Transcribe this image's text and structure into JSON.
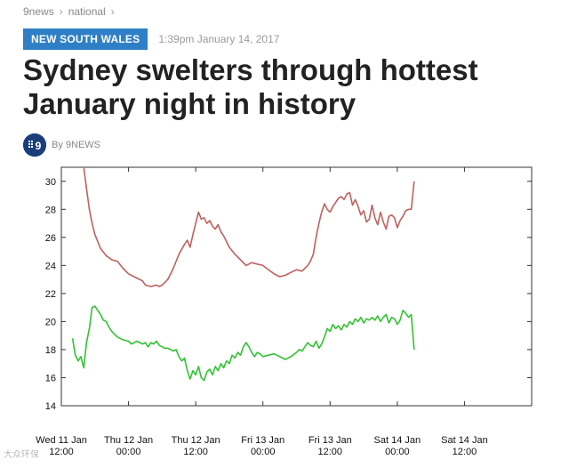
{
  "breadcrumb": {
    "items": [
      "9news",
      "national"
    ],
    "separator": "›"
  },
  "article": {
    "category": "NEW SOUTH WALES",
    "timestamp": "1:39pm January 14, 2017",
    "title": "Sydney swelters through hottest January night in history",
    "byline": "By 9NEWS",
    "author_logo_text": "9"
  },
  "colors": {
    "badge": "#2f7fc6",
    "red_series": "#c06060",
    "green_series": "#33c233",
    "avatar": "#1b3e7a"
  },
  "chart_data": {
    "type": "line",
    "xlim": [
      0,
      84
    ],
    "ylim": [
      14,
      31
    ],
    "y_ticks": [
      14,
      16,
      18,
      20,
      22,
      24,
      26,
      28,
      30
    ],
    "x_ticks": [
      {
        "x": 0,
        "label1": "Wed 11 Jan",
        "label2": "12:00"
      },
      {
        "x": 12,
        "label1": "Thu 12 Jan",
        "label2": "00:00"
      },
      {
        "x": 24,
        "label1": "Thu 12 Jan",
        "label2": "12:00"
      },
      {
        "x": 36,
        "label1": "Fri 13 Jan",
        "label2": "00:00"
      },
      {
        "x": 48,
        "label1": "Fri 13 Jan",
        "label2": "12:00"
      },
      {
        "x": 60,
        "label1": "Sat 14 Jan",
        "label2": "00:00"
      },
      {
        "x": 72,
        "label1": "Sat 14 Jan",
        "label2": "12:00"
      }
    ],
    "grid": false,
    "series": [
      {
        "color": "#c06060",
        "points": [
          [
            4,
            31
          ],
          [
            4.5,
            29.5
          ],
          [
            5,
            28
          ],
          [
            5.5,
            27
          ],
          [
            6,
            26.2
          ],
          [
            7,
            25.2
          ],
          [
            8,
            24.7
          ],
          [
            9,
            24.4
          ],
          [
            10,
            24.3
          ],
          [
            11,
            23.8
          ],
          [
            12,
            23.4
          ],
          [
            13,
            23.2
          ],
          [
            14,
            23
          ],
          [
            14.5,
            22.9
          ],
          [
            15,
            22.6
          ],
          [
            16,
            22.5
          ],
          [
            17,
            22.6
          ],
          [
            17.5,
            22.5
          ],
          [
            18,
            22.6
          ],
          [
            19,
            23
          ],
          [
            20,
            23.8
          ],
          [
            21,
            24.8
          ],
          [
            22,
            25.5
          ],
          [
            22.5,
            25.8
          ],
          [
            23,
            25.3
          ],
          [
            23.5,
            26.2
          ],
          [
            24,
            27
          ],
          [
            24.5,
            27.8
          ],
          [
            25,
            27.3
          ],
          [
            25.5,
            27.4
          ],
          [
            26,
            27
          ],
          [
            26.5,
            27.2
          ],
          [
            27,
            26.8
          ],
          [
            27.5,
            26.6
          ],
          [
            28,
            26.9
          ],
          [
            28.5,
            26.4
          ],
          [
            29,
            26.1
          ],
          [
            30,
            25.3
          ],
          [
            31,
            24.8
          ],
          [
            32,
            24.4
          ],
          [
            33,
            24
          ],
          [
            34,
            24.2
          ],
          [
            35,
            24.1
          ],
          [
            36,
            24
          ],
          [
            37,
            23.7
          ],
          [
            38,
            23.4
          ],
          [
            39,
            23.2
          ],
          [
            40,
            23.3
          ],
          [
            41,
            23.5
          ],
          [
            42,
            23.7
          ],
          [
            43,
            23.6
          ],
          [
            44,
            24
          ],
          [
            44.5,
            24.3
          ],
          [
            45,
            24.8
          ],
          [
            45.5,
            26
          ],
          [
            46,
            27
          ],
          [
            46.5,
            27.8
          ],
          [
            47,
            28.4
          ],
          [
            47.5,
            28
          ],
          [
            48,
            27.8
          ],
          [
            48.5,
            28.2
          ],
          [
            49,
            28.5
          ],
          [
            49.5,
            28.8
          ],
          [
            50,
            28.9
          ],
          [
            50.5,
            28.7
          ],
          [
            51,
            29.1
          ],
          [
            51.5,
            29.2
          ],
          [
            52,
            28.3
          ],
          [
            52.5,
            28.7
          ],
          [
            53,
            28.2
          ],
          [
            53.5,
            27.6
          ],
          [
            54,
            27.9
          ],
          [
            54.5,
            27.1
          ],
          [
            55,
            27.3
          ],
          [
            55.5,
            28.3
          ],
          [
            56,
            27.4
          ],
          [
            56.5,
            26.9
          ],
          [
            57,
            27.8
          ],
          [
            57.5,
            27.1
          ],
          [
            58,
            26.6
          ],
          [
            58.5,
            27.5
          ],
          [
            59,
            27.6
          ],
          [
            59.5,
            27.4
          ],
          [
            60,
            26.7
          ],
          [
            60.5,
            27.2
          ],
          [
            61,
            27.5
          ],
          [
            61.5,
            27.9
          ],
          [
            62,
            28
          ],
          [
            62.5,
            28
          ],
          [
            63,
            30
          ]
        ]
      },
      {
        "color": "#33c233",
        "points": [
          [
            2,
            18.8
          ],
          [
            2.5,
            17.6
          ],
          [
            3,
            17.2
          ],
          [
            3.5,
            17.5
          ],
          [
            4,
            16.7
          ],
          [
            4.5,
            18.5
          ],
          [
            5,
            19.5
          ],
          [
            5.5,
            21
          ],
          [
            6,
            21.1
          ],
          [
            6.5,
            20.8
          ],
          [
            7,
            20.5
          ],
          [
            7.5,
            20.1
          ],
          [
            8,
            20
          ],
          [
            8.5,
            19.6
          ],
          [
            9,
            19.3
          ],
          [
            9.5,
            19.1
          ],
          [
            10,
            18.9
          ],
          [
            10.5,
            18.8
          ],
          [
            11,
            18.7
          ],
          [
            12,
            18.6
          ],
          [
            12.5,
            18.4
          ],
          [
            13,
            18.5
          ],
          [
            13.5,
            18.6
          ],
          [
            14,
            18.5
          ],
          [
            14.5,
            18.4
          ],
          [
            15,
            18.5
          ],
          [
            15.5,
            18.2
          ],
          [
            16,
            18.5
          ],
          [
            16.5,
            18.4
          ],
          [
            17,
            18.6
          ],
          [
            17.5,
            18.3
          ],
          [
            18,
            18.2
          ],
          [
            18.5,
            18.1
          ],
          [
            19,
            18.1
          ],
          [
            19.5,
            18
          ],
          [
            20,
            17.9
          ],
          [
            20.5,
            18
          ],
          [
            21,
            17.5
          ],
          [
            21.5,
            17.2
          ],
          [
            22,
            17.4
          ],
          [
            22.5,
            16.5
          ],
          [
            23,
            15.9
          ],
          [
            23.5,
            16.5
          ],
          [
            24,
            16.2
          ],
          [
            24.5,
            16.8
          ],
          [
            25,
            16
          ],
          [
            25.5,
            15.8
          ],
          [
            26,
            16.4
          ],
          [
            26.5,
            16.6
          ],
          [
            27,
            16.2
          ],
          [
            27.5,
            16.8
          ],
          [
            28,
            16.5
          ],
          [
            28.5,
            17
          ],
          [
            29,
            16.7
          ],
          [
            29.5,
            17.2
          ],
          [
            30,
            17
          ],
          [
            30.5,
            17.6
          ],
          [
            31,
            17.4
          ],
          [
            31.5,
            17.8
          ],
          [
            32,
            17.6
          ],
          [
            32.5,
            18.2
          ],
          [
            33,
            18.5
          ],
          [
            33.5,
            18.2
          ],
          [
            34,
            17.8
          ],
          [
            34.5,
            17.5
          ],
          [
            35,
            17.8
          ],
          [
            35.5,
            17.7
          ],
          [
            36,
            17.5
          ],
          [
            37,
            17.6
          ],
          [
            38,
            17.7
          ],
          [
            39,
            17.5
          ],
          [
            40,
            17.3
          ],
          [
            41,
            17.5
          ],
          [
            42,
            17.8
          ],
          [
            42.5,
            18
          ],
          [
            43,
            17.9
          ],
          [
            43.5,
            18.2
          ],
          [
            44,
            18.5
          ],
          [
            44.5,
            18.3
          ],
          [
            45,
            18.2
          ],
          [
            45.5,
            18.6
          ],
          [
            46,
            18.1
          ],
          [
            46.5,
            18.4
          ],
          [
            47,
            18.9
          ],
          [
            47.5,
            19.5
          ],
          [
            48,
            19.3
          ],
          [
            48.5,
            19.8
          ],
          [
            49,
            19.5
          ],
          [
            49.5,
            19.7
          ],
          [
            50,
            19.4
          ],
          [
            50.5,
            19.8
          ],
          [
            51,
            19.6
          ],
          [
            51.5,
            20
          ],
          [
            52,
            19.8
          ],
          [
            52.5,
            20.2
          ],
          [
            53,
            20
          ],
          [
            53.5,
            20.3
          ],
          [
            54,
            19.9
          ],
          [
            54.5,
            20.2
          ],
          [
            55,
            20.1
          ],
          [
            55.5,
            20.3
          ],
          [
            56,
            20.1
          ],
          [
            56.5,
            20.4
          ],
          [
            57,
            20
          ],
          [
            57.5,
            20.3
          ],
          [
            58,
            20.5
          ],
          [
            58.5,
            19.9
          ],
          [
            59,
            20.3
          ],
          [
            59.5,
            20.2
          ],
          [
            60,
            19.8
          ],
          [
            60.5,
            20.1
          ],
          [
            61,
            20.8
          ],
          [
            61.5,
            20.6
          ],
          [
            62,
            20.3
          ],
          [
            62.5,
            20.5
          ],
          [
            63,
            18
          ]
        ]
      }
    ]
  },
  "watermark": "大众环保"
}
